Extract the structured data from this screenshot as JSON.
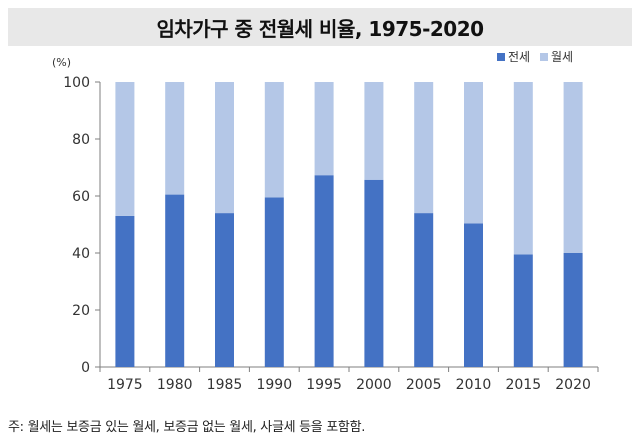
{
  "title": "임차가구 중 전월세 비율, 1975-2020",
  "footnote": "주: 월세는 보증금 있는 월세, 보증금 없는 월세, 사글세 등을 포함함.",
  "colors": {
    "jeonse": "#4472c4",
    "wolse": "#b4c7e7",
    "axis": "#7f7f7f"
  },
  "chart_data": {
    "type": "bar",
    "stacked": true,
    "categories": [
      "1975",
      "1980",
      "1985",
      "1990",
      "1995",
      "2000",
      "2005",
      "2010",
      "2015",
      "2020"
    ],
    "series": [
      {
        "name": "전세",
        "values": [
          53,
          60.5,
          54,
          59.5,
          67.3,
          65.7,
          54,
          50.4,
          39.5,
          40
        ]
      },
      {
        "name": "월세",
        "values": [
          47,
          39.5,
          46,
          40.5,
          32.7,
          34.3,
          46,
          49.6,
          60.5,
          60
        ]
      }
    ],
    "yunit": "(%)",
    "ylim": [
      0,
      100
    ],
    "yticks": [
      0,
      20,
      40,
      60,
      80,
      100
    ],
    "grid": false,
    "legend": "top-right"
  }
}
